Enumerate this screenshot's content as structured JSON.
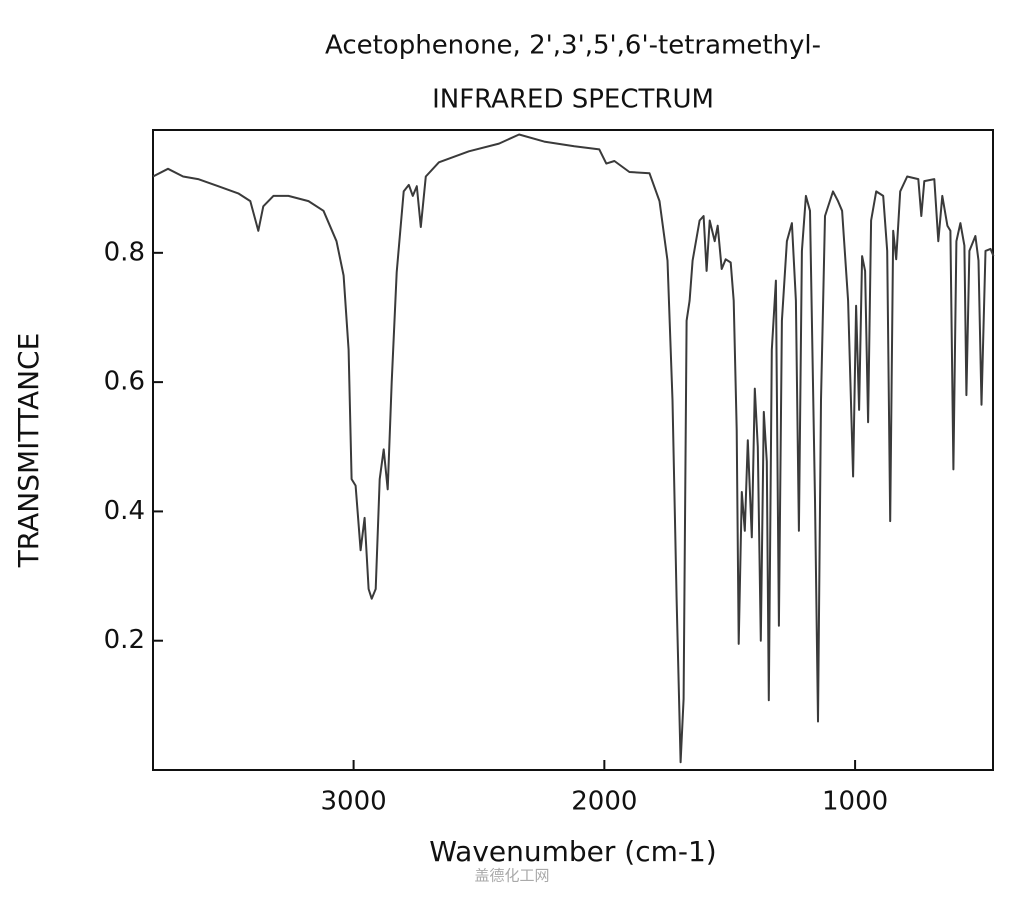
{
  "chart_data": {
    "type": "line",
    "title": "Acetophenone, 2',3',5',6'-tetramethyl-",
    "subtitle": "INFRARED SPECTRUM",
    "x_label": "Wavenumber (cm-1)",
    "y_label": "TRANSMITTANCE",
    "watermark": "盖德化工网",
    "color": "#3a3a3a",
    "xlim": [
      3800,
      450
    ],
    "ylim": [
      0,
      0.99
    ],
    "xticks": [
      3000,
      2000,
      1000
    ],
    "yticks": [
      0.2,
      0.4,
      0.6,
      0.8
    ],
    "x": [
      3800,
      3740,
      3680,
      3620,
      3540,
      3460,
      3412,
      3380,
      3360,
      3320,
      3260,
      3180,
      3120,
      3068,
      3040,
      3020,
      3008,
      2992,
      2972,
      2956,
      2940,
      2928,
      2912,
      2896,
      2880,
      2864,
      2848,
      2828,
      2800,
      2780,
      2764,
      2748,
      2732,
      2712,
      2660,
      2540,
      2420,
      2340,
      2240,
      2120,
      2020,
      1992,
      1960,
      1900,
      1820,
      1780,
      1748,
      1728,
      1712,
      1696,
      1684,
      1672,
      1660,
      1648,
      1620,
      1604,
      1592,
      1580,
      1560,
      1548,
      1532,
      1516,
      1496,
      1484,
      1472,
      1464,
      1452,
      1440,
      1428,
      1412,
      1400,
      1388,
      1376,
      1364,
      1352,
      1344,
      1332,
      1316,
      1304,
      1292,
      1272,
      1252,
      1236,
      1224,
      1212,
      1196,
      1180,
      1160,
      1148,
      1136,
      1120,
      1088,
      1068,
      1052,
      1028,
      1008,
      996,
      984,
      972,
      960,
      948,
      936,
      916,
      888,
      872,
      860,
      848,
      836,
      820,
      792,
      748,
      736,
      724,
      684,
      668,
      652,
      632,
      620,
      608,
      596,
      580,
      564,
      556,
      544,
      520,
      508,
      496,
      480,
      460,
      448
    ],
    "values": [
      0.918,
      0.93,
      0.918,
      0.914,
      0.903,
      0.892,
      0.88,
      0.834,
      0.872,
      0.888,
      0.888,
      0.88,
      0.865,
      0.818,
      0.765,
      0.65,
      0.45,
      0.44,
      0.34,
      0.39,
      0.28,
      0.265,
      0.28,
      0.45,
      0.496,
      0.434,
      0.6,
      0.77,
      0.895,
      0.905,
      0.888,
      0.903,
      0.84,
      0.918,
      0.94,
      0.957,
      0.969,
      0.983,
      0.972,
      0.965,
      0.96,
      0.938,
      0.942,
      0.925,
      0.923,
      0.88,
      0.788,
      0.572,
      0.265,
      0.012,
      0.11,
      0.695,
      0.726,
      0.788,
      0.85,
      0.857,
      0.772,
      0.85,
      0.818,
      0.842,
      0.775,
      0.79,
      0.785,
      0.726,
      0.526,
      0.195,
      0.43,
      0.37,
      0.51,
      0.36,
      0.59,
      0.5,
      0.2,
      0.554,
      0.477,
      0.108,
      0.65,
      0.757,
      0.223,
      0.695,
      0.818,
      0.846,
      0.726,
      0.37,
      0.803,
      0.888,
      0.865,
      0.418,
      0.075,
      0.572,
      0.857,
      0.895,
      0.88,
      0.865,
      0.726,
      0.454,
      0.718,
      0.557,
      0.795,
      0.772,
      0.538,
      0.85,
      0.895,
      0.888,
      0.803,
      0.385,
      0.834,
      0.79,
      0.895,
      0.918,
      0.914,
      0.857,
      0.911,
      0.914,
      0.818,
      0.888,
      0.842,
      0.834,
      0.465,
      0.818,
      0.846,
      0.811,
      0.58,
      0.803,
      0.826,
      0.788,
      0.565,
      0.803,
      0.806,
      0.795
    ]
  }
}
